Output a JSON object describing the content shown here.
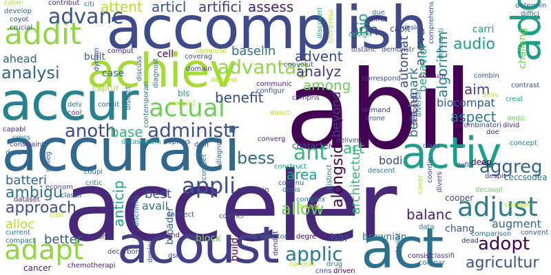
{
  "word_cloud": {
    "words": [
      {
        "text": "abil",
        "color": "#440154"
      },
      {
        "text": "acceler",
        "color": "#482878"
      },
      {
        "text": "accomplish",
        "color": "#3e4a89"
      },
      {
        "text": "accuraci",
        "color": "#31688e"
      },
      {
        "text": "accur",
        "color": "#26828e"
      },
      {
        "text": "achiev",
        "color": "#a5db36"
      },
      {
        "text": "acoust",
        "color": "#433e85"
      },
      {
        "text": "act",
        "color": "#2c728e"
      },
      {
        "text": "activ",
        "color": "#1f9e89"
      },
      {
        "text": "address",
        "color": "#1f9e89"
      },
      {
        "text": "addit",
        "color": "#90d743"
      },
      {
        "text": "adapt",
        "color": "#90d743"
      },
      {
        "text": "actual",
        "color": "#6ece58"
      },
      {
        "text": "adjust",
        "color": "#287d8e"
      },
      {
        "text": "administr",
        "color": "#3b528b"
      },
      {
        "text": "advantag",
        "color": "#90d743"
      },
      {
        "text": "advanc",
        "color": "#3b528b"
      },
      {
        "text": "anoth",
        "color": "#3e4a89"
      },
      {
        "text": "ant",
        "color": "#35b779"
      },
      {
        "text": "art",
        "color": "#35b779"
      },
      {
        "text": "aggreg",
        "color": "#33638d"
      },
      {
        "text": "appli",
        "color": "#3b528b"
      },
      {
        "text": "allow",
        "color": "#6ece58"
      },
      {
        "text": "adopt",
        "color": "#440154"
      },
      {
        "text": "agricultur",
        "color": "#3b528b"
      },
      {
        "text": "applic",
        "color": "#2a788e"
      },
      {
        "text": "ambigu",
        "color": "#2c728e"
      },
      {
        "text": "approach",
        "color": "#3e4a89"
      },
      {
        "text": "analysi",
        "color": "#33638d"
      },
      {
        "text": "analyz",
        "color": "#443983"
      },
      {
        "text": "attent",
        "color": "#b5de2b"
      },
      {
        "text": "articl",
        "color": "#3b528b"
      },
      {
        "text": "artifici",
        "color": "#443983"
      },
      {
        "text": "assess",
        "color": "#481f70"
      },
      {
        "text": "audio",
        "color": "#1f9e89"
      },
      {
        "text": "advent",
        "color": "#3e4a89"
      },
      {
        "text": "ann",
        "color": "#3e4a89"
      },
      {
        "text": "bio",
        "color": "#20a486"
      },
      {
        "text": "baselin",
        "color": "#2c728e"
      },
      {
        "text": "among",
        "color": "#6ece58"
      },
      {
        "text": "aim",
        "color": "#433e85"
      },
      {
        "text": "aspect",
        "color": "#2a788e"
      },
      {
        "text": "biocompat",
        "color": "#38598c"
      },
      {
        "text": "benefit",
        "color": "#3e4a89"
      },
      {
        "text": "bess",
        "color": "#31688e"
      },
      {
        "text": "base",
        "color": "#35b779"
      },
      {
        "text": "area",
        "color": "#1fa187"
      },
      {
        "text": "best",
        "color": "#3e4a89"
      },
      {
        "text": "avail",
        "color": "#2c728e"
      },
      {
        "text": "balanc",
        "color": "#481f70"
      },
      {
        "text": "batteri",
        "color": "#33638d"
      },
      {
        "text": "alloc",
        "color": "#b5de2b"
      },
      {
        "text": "better",
        "color": "#38598c"
      },
      {
        "text": "cancer",
        "color": "#481f70"
      },
      {
        "text": "ahead",
        "color": "#33638d"
      },
      {
        "text": "bar",
        "color": "#3b528b"
      },
      {
        "text": "bodi",
        "color": "#3e4a89"
      },
      {
        "text": "brownian",
        "color": "#2a788e"
      },
      {
        "text": "augment",
        "color": "#31688e"
      },
      {
        "text": "chang",
        "color": "#3b528b"
      },
      {
        "text": "beyond",
        "color": "#433e85"
      },
      {
        "text": "alongsid",
        "color": "#440154"
      },
      {
        "text": "architectur",
        "color": "#35b779"
      },
      {
        "text": "algorithm",
        "color": "#26828e"
      },
      {
        "text": "anova",
        "color": "#3b528b"
      },
      {
        "text": "automat",
        "color": "#3e4a89"
      },
      {
        "text": "behavior",
        "color": "#1f9e89"
      },
      {
        "text": "benchmark",
        "color": "#2c728e"
      },
      {
        "text": "anticip",
        "color": "#1f9e89"
      },
      {
        "text": "capit",
        "color": "#443983"
      },
      {
        "text": "carri",
        "color": "#1f9e89"
      },
      {
        "text": "challeng",
        "color": "#6ece58"
      },
      {
        "text": "build",
        "color": "#440154"
      },
      {
        "text": "broader",
        "color": "#31688e"
      },
      {
        "text": "block",
        "color": "#73d056"
      },
      {
        "text": "built",
        "color": "#33638d"
      },
      {
        "text": "case",
        "color": "#33638d"
      },
      {
        "text": "cell",
        "color": "#440154"
      },
      {
        "text": "captur",
        "color": "#a5db36"
      },
      {
        "text": "character",
        "color": "#38598c"
      },
      {
        "text": "deep",
        "color": "#440154"
      },
      {
        "text": "concept",
        "color": "#2c728e"
      },
      {
        "text": "complex",
        "color": "#2a788e"
      },
      {
        "text": "competitor",
        "color": "#38598c"
      },
      {
        "text": "comparison",
        "color": "#2c728e"
      },
      {
        "text": "degre",
        "color": "#440154"
      },
      {
        "text": "dead",
        "color": "#482878"
      },
      {
        "text": "cec",
        "color": "#2c728e"
      },
      {
        "text": "csodea",
        "color": "#2a788e"
      },
      {
        "text": "despit",
        "color": "#443983"
      },
      {
        "text": "decoupl",
        "color": "#6ece58"
      },
      {
        "text": "cooper",
        "color": "#3e4a89"
      },
      {
        "text": "data",
        "color": "#2a788e"
      },
      {
        "text": "convent",
        "color": "#38598c"
      },
      {
        "text": "dnm",
        "color": "#482878"
      },
      {
        "text": "decarbon",
        "color": "#443983"
      },
      {
        "text": "comprehend",
        "color": "#481f70"
      },
      {
        "text": "deploy",
        "color": "#3b528b"
      },
      {
        "text": "dsn",
        "color": "#3b528b"
      },
      {
        "text": "drug",
        "color": "#2a788e"
      },
      {
        "text": "driven",
        "color": "#440154"
      },
      {
        "text": "compar",
        "color": "#31688e"
      },
      {
        "text": "consist",
        "color": "#482878"
      },
      {
        "text": "classifi",
        "color": "#3e4a89"
      },
      {
        "text": "cnns",
        "color": "#433e85"
      },
      {
        "text": "conduit",
        "color": "#b5de2b"
      },
      {
        "text": "deviat",
        "color": "#38598c"
      },
      {
        "text": "dendrit",
        "color": "#482878"
      },
      {
        "text": "chemotherapi",
        "color": "#481f70"
      },
      {
        "text": "current",
        "color": "#2a788e"
      },
      {
        "text": "compact",
        "color": "#33638d"
      },
      {
        "text": "dataset",
        "color": "#482878"
      },
      {
        "text": "cost",
        "color": "#b5de2b"
      },
      {
        "text": "connect",
        "color": "#3e4a89"
      },
      {
        "text": "coeffici",
        "color": "#3e4a89"
      },
      {
        "text": "constrain",
        "color": "#443983"
      },
      {
        "text": "compet",
        "color": "#2a788e"
      },
      {
        "text": "continu",
        "color": "#38598c"
      },
      {
        "text": "decis",
        "color": "#2c728e"
      },
      {
        "text": "detect",
        "color": "#b5de2b"
      },
      {
        "text": "distinct",
        "color": "#2a788e"
      },
      {
        "text": "coordin",
        "color": "#3b528b"
      },
      {
        "text": "divers",
        "color": "#433e85"
      },
      {
        "text": "cover",
        "color": "#b5de2b"
      },
      {
        "text": "collabor",
        "color": "#b5de2b"
      },
      {
        "text": "econom",
        "color": "#3b528b"
      },
      {
        "text": "classif",
        "color": "#3e4a89"
      },
      {
        "text": "critic",
        "color": "#2a788e"
      },
      {
        "text": "coupl",
        "color": "#2c728e"
      },
      {
        "text": "colleg",
        "color": "#38598c"
      },
      {
        "text": "discrimin",
        "color": "#2c728e"
      },
      {
        "text": "construct",
        "color": "#1f9e89"
      },
      {
        "text": "deliveri",
        "color": "#3e4a89"
      },
      {
        "text": "descent",
        "color": "#2c728e"
      },
      {
        "text": "defin",
        "color": "#3b528b"
      },
      {
        "text": "class",
        "color": "#31688e"
      },
      {
        "text": "dure",
        "color": "#31688e"
      },
      {
        "text": "cross",
        "color": "#2a788e"
      },
      {
        "text": "constraint",
        "color": "#443983"
      },
      {
        "text": "capabl",
        "color": "#482878"
      },
      {
        "text": "datastream",
        "color": "#1f9e89"
      },
      {
        "text": "copious",
        "color": "#3b528b"
      },
      {
        "text": "daili",
        "color": "#3b528b"
      },
      {
        "text": "diagnosi",
        "color": "#33638d"
      },
      {
        "text": "district",
        "color": "#31688e"
      },
      {
        "text": "converg",
        "color": "#482878"
      },
      {
        "text": "cool",
        "color": "#443983"
      },
      {
        "text": "delv",
        "color": "#2c728e"
      },
      {
        "text": "condit",
        "color": "#33638d"
      },
      {
        "text": "conduct",
        "color": "#b5de2b"
      },
      {
        "text": "contemporari",
        "color": "#2a788e"
      },
      {
        "text": "bls",
        "color": "#1f9e89"
      },
      {
        "text": "depend",
        "color": "#b5de2b"
      },
      {
        "text": "communic",
        "color": "#482878"
      },
      {
        "text": "configur",
        "color": "#3b528b"
      },
      {
        "text": "compris",
        "color": "#3e4a89"
      },
      {
        "text": "direct",
        "color": "#b5de2b"
      },
      {
        "text": "drone",
        "color": "#3b528b"
      },
      {
        "text": "demand",
        "color": "#443983"
      },
      {
        "text": "deepglob",
        "color": "#481f70"
      },
      {
        "text": "diversifi",
        "color": "#2a788e"
      },
      {
        "text": "combinatori",
        "color": "#3e4a89"
      },
      {
        "text": "doe",
        "color": "#482878"
      },
      {
        "text": "divid",
        "color": "#482878"
      },
      {
        "text": "dedic",
        "color": "#6ece58"
      },
      {
        "text": "creat",
        "color": "#1f9e89"
      },
      {
        "text": "deliv",
        "color": "#b5de2b"
      },
      {
        "text": "contrast",
        "color": "#3b528b"
      },
      {
        "text": "combin",
        "color": "#38598c"
      },
      {
        "text": "consum",
        "color": "#481f70"
      },
      {
        "text": "correspond",
        "color": "#3e4a89"
      },
      {
        "text": "convolut",
        "color": "#3b528b"
      },
      {
        "text": "distanc",
        "color": "#3e4a89"
      },
      {
        "text": "demonstr",
        "color": "#3e4a89"
      },
      {
        "text": "design",
        "color": "#35b779"
      },
      {
        "text": "compress",
        "color": "#b5de2b"
      },
      {
        "text": "consid",
        "color": "#3b528b"
      },
      {
        "text": "differ",
        "color": "#482878"
      },
      {
        "text": "due",
        "color": "#2a788e"
      },
      {
        "text": "citi",
        "color": "#2c728e"
      },
      {
        "text": "discoveri",
        "color": "#1f9e89"
      },
      {
        "text": "comprehens",
        "color": "#3b528b"
      },
      {
        "text": "differenti",
        "color": "#2a788e"
      },
      {
        "text": "determin",
        "color": "#33638d"
      },
      {
        "text": "diffici",
        "color": "#33638d"
      },
      {
        "text": "colori",
        "color": "#b5de2b"
      },
      {
        "text": "develop",
        "color": "#33638d"
      },
      {
        "text": "coyot",
        "color": "#3b528b"
      },
      {
        "text": "crucial",
        "color": "#3b528b"
      },
      {
        "text": "contribut",
        "color": "#482878"
      },
      {
        "text": "discuss",
        "color": "#38598c"
      },
      {
        "text": "coverag",
        "color": "#3b528b"
      },
      {
        "text": "domain",
        "color": "#443983"
      },
      {
        "text": "comput",
        "color": "#482878"
      },
      {
        "text": "composit",
        "color": "#b5de2b"
      },
      {
        "text": "diagnost",
        "color": "#2c728e"
      },
      {
        "text": "dynam",
        "color": "#3e4a89"
      }
    ]
  }
}
